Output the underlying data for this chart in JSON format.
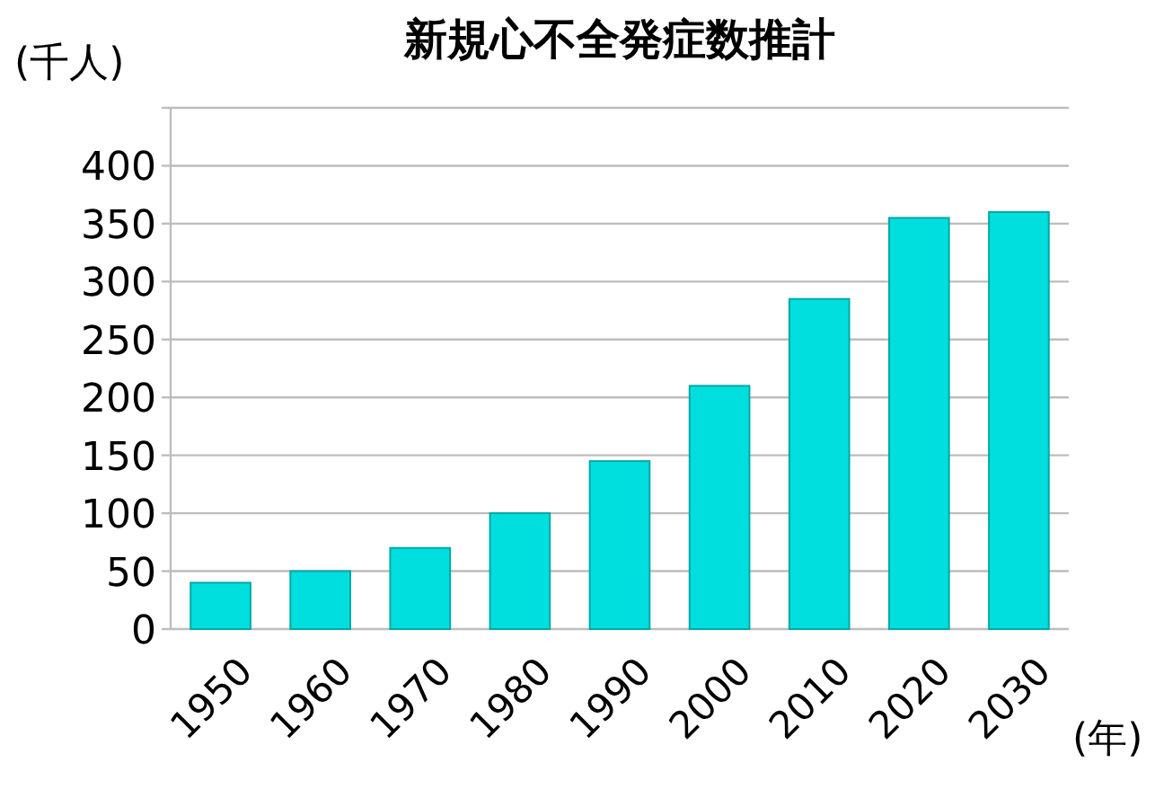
{
  "chart_data": {
    "type": "bar",
    "title": "新規心不全発症数推計",
    "xlabel": "(年)",
    "ylabel": "(千人)",
    "categories": [
      "1950",
      "1960",
      "1970",
      "1980",
      "1990",
      "2000",
      "2010",
      "2020",
      "2030"
    ],
    "values": [
      40,
      50,
      70,
      100,
      145,
      210,
      285,
      355,
      360
    ],
    "color": "#00dede",
    "ylim": [
      0,
      450
    ],
    "yticks": [
      0,
      50,
      100,
      150,
      200,
      250,
      300,
      350,
      400,
      {
        "value": 450,
        "label": null
      }
    ],
    "grid": "y"
  }
}
